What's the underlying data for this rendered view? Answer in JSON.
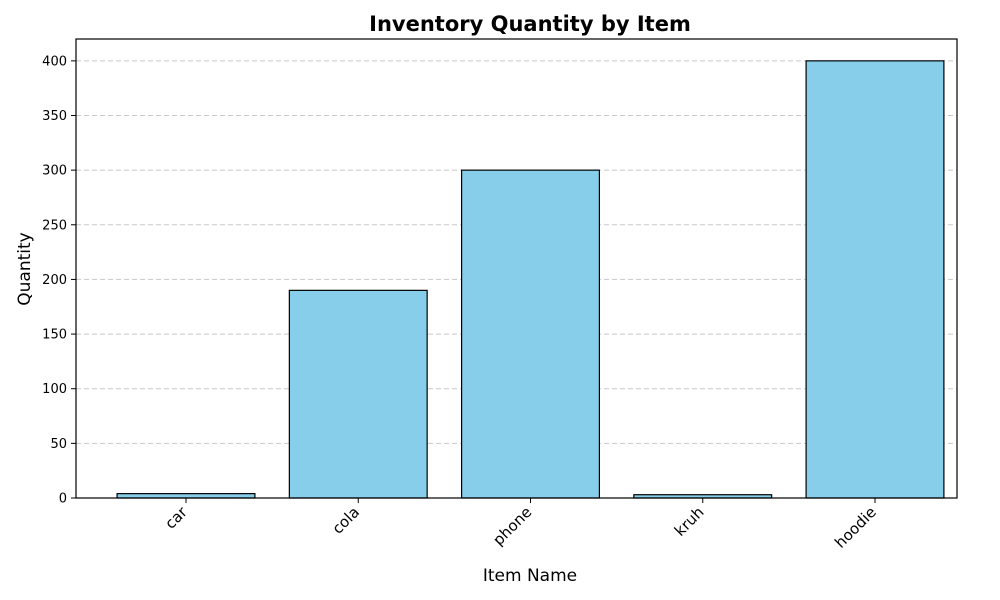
{
  "chart_data": {
    "type": "bar",
    "title": "Inventory Quantity by Item",
    "xlabel": "Item Name",
    "ylabel": "Quantity",
    "categories": [
      "car",
      "cola",
      "phone",
      "kruh",
      "hoodie"
    ],
    "values": [
      4,
      190,
      300,
      3,
      400
    ],
    "ylim": [
      0,
      420
    ],
    "yticks": [
      0,
      50,
      100,
      150,
      200,
      250,
      300,
      350,
      400
    ],
    "grid": "y-dashed",
    "bar_color": "#87ceeb",
    "edge_color": "#000000",
    "legend": "none"
  }
}
